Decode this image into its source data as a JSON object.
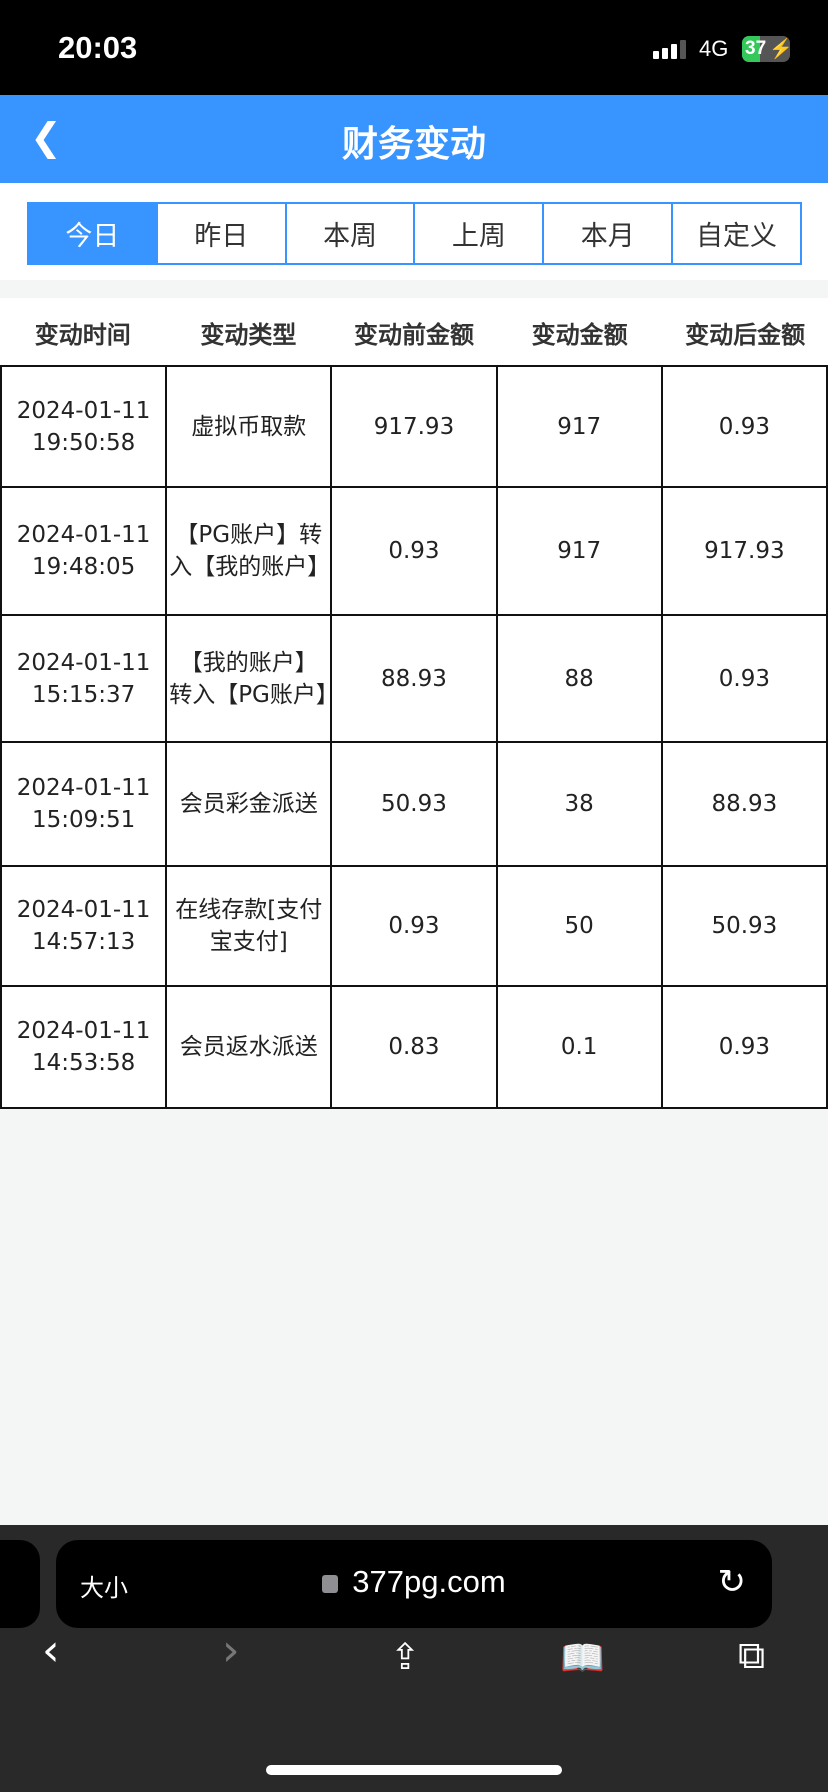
{
  "status_bar": {
    "time": "20:03",
    "network": "4G",
    "battery": "37"
  },
  "header": {
    "title": "财务变动",
    "back_icon": "chevron-left-icon"
  },
  "tabs": [
    {
      "label": "今日",
      "active": true
    },
    {
      "label": "昨日"
    },
    {
      "label": "本周"
    },
    {
      "label": "上周"
    },
    {
      "label": "本月"
    },
    {
      "label": "自定义"
    }
  ],
  "table": {
    "columns": [
      "变动时间",
      "变动类型",
      "变动前金额",
      "变动金额",
      "变动后金额"
    ],
    "rows": [
      {
        "date": "2024-01-11",
        "time": "19:50:58",
        "type": "虚拟币取款",
        "before": "917.93",
        "amount": "917",
        "after": "0.93"
      },
      {
        "date": "2024-01-11",
        "time": "19:48:05",
        "type": "【PG账户】转入【我的账户】",
        "before": "0.93",
        "amount": "917",
        "after": "917.93"
      },
      {
        "date": "2024-01-11",
        "time": "15:15:37",
        "type": "【我的账户】转入【PG账户】",
        "before": "88.93",
        "amount": "88",
        "after": "0.93"
      },
      {
        "date": "2024-01-11",
        "time": "15:09:51",
        "type": "会员彩金派送",
        "before": "50.93",
        "amount": "38",
        "after": "88.93"
      },
      {
        "date": "2024-01-11",
        "time": "14:57:13",
        "type": "在线存款[支付宝支付]",
        "before": "0.93",
        "amount": "50",
        "after": "50.93"
      },
      {
        "date": "2024-01-11",
        "time": "14:53:58",
        "type": "会员返水派送",
        "before": "0.83",
        "amount": "0.1",
        "after": "0.93"
      }
    ]
  },
  "browser": {
    "text_size": "大小",
    "domain": "377pg.com"
  },
  "colors": {
    "accent": "#3894ff",
    "border": "#111111"
  }
}
